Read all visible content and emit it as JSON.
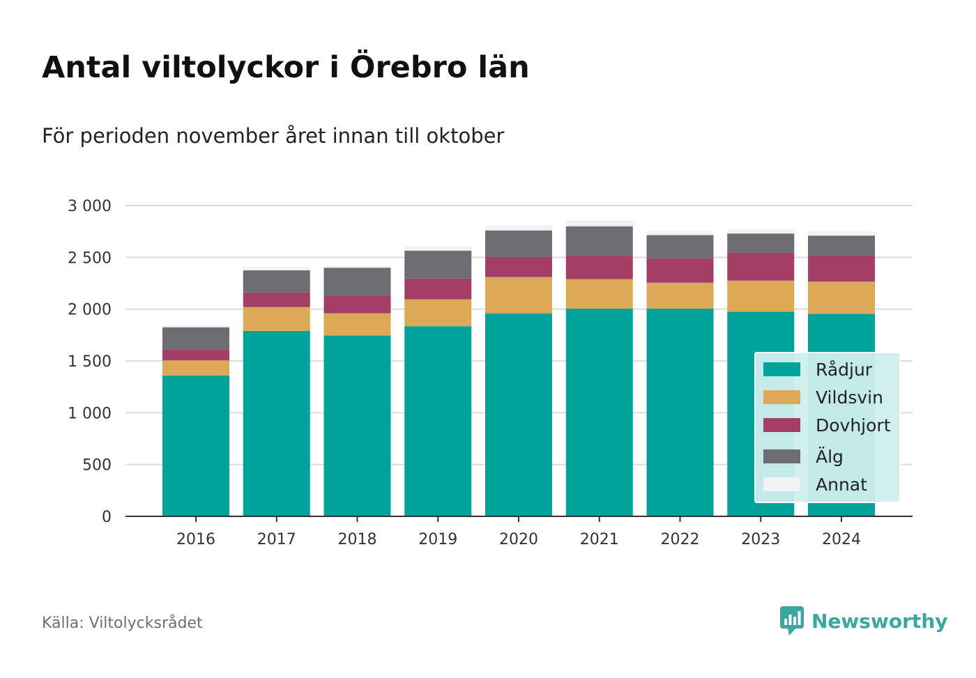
{
  "chart_data": {
    "type": "bar",
    "stacked": true,
    "title": "Antal viltolyckor i Örebro län",
    "subtitle": "För perioden november året innan till oktober",
    "categories": [
      "2016",
      "2017",
      "2018",
      "2019",
      "2020",
      "2021",
      "2022",
      "2023",
      "2024"
    ],
    "series": [
      {
        "name": "Rådjur",
        "color": "#00a39a",
        "values": [
          1360,
          1790,
          1745,
          1835,
          1960,
          2005,
          2005,
          1975,
          1955
        ]
      },
      {
        "name": "Vildsvin",
        "color": "#dbaa57",
        "values": [
          145,
          230,
          215,
          260,
          350,
          285,
          250,
          300,
          310
        ]
      },
      {
        "name": "Dovhjort",
        "color": "#a43e64",
        "values": [
          105,
          140,
          170,
          200,
          195,
          225,
          235,
          270,
          255
        ]
      },
      {
        "name": "Älg",
        "color": "#6d6d73",
        "values": [
          215,
          215,
          270,
          270,
          255,
          285,
          225,
          185,
          190
        ]
      },
      {
        "name": "Annat",
        "color": "#f2f2f2",
        "values": [
          20,
          30,
          20,
          40,
          50,
          55,
          40,
          40,
          40
        ]
      }
    ],
    "ylim": [
      0,
      3000
    ],
    "yticks": [
      0,
      500,
      1000,
      1500,
      2000,
      2500,
      3000
    ],
    "ytick_labels": [
      "0",
      "500",
      "1 000",
      "1 500",
      "2 000",
      "2 500",
      "3 000"
    ],
    "grid": true,
    "legend_position": "bottom-right"
  },
  "footer": {
    "source": "Källa: Viltolycksrådet",
    "logo_text": "Newsworthy",
    "logo_icon": "bar-chart-speech-bubble-icon"
  }
}
